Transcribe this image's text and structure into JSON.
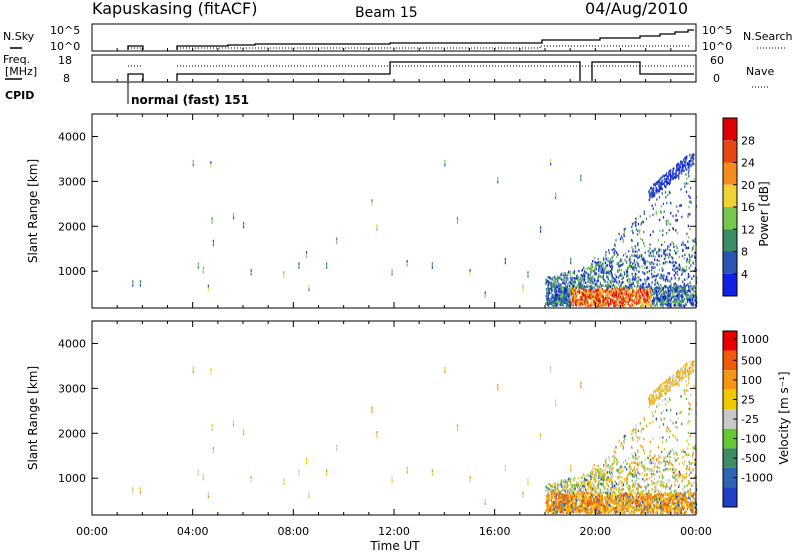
{
  "header": {
    "station": "Kapuskasing (fitACF)",
    "beam": "Beam 15",
    "date": "04/Aug/2010"
  },
  "strips": {
    "nsky_label": "N.Sky",
    "nsearch_label": "N.Search",
    "freq_label_line1": "Freq.",
    "freq_label_line2": "[MHz]",
    "nave_label": "Nave",
    "cpid_label": "CPID",
    "cpid_text": "normal (fast) 151",
    "nsky_ticks": [
      "10^5",
      "10^0"
    ],
    "nsearch_ticks": [
      "10^5",
      "10^0"
    ],
    "freq_ticks": [
      "18",
      "8"
    ],
    "nave_ticks": [
      "60",
      "0"
    ]
  },
  "chart_data": [
    {
      "type": "heatmap",
      "name": "power",
      "ylabel": "Slant Range [km]",
      "yticks": [
        1000,
        2000,
        3000,
        4000
      ],
      "ylim": [
        180,
        4500
      ],
      "xticks": [
        "00:00",
        "04:00",
        "08:00",
        "12:00",
        "16:00",
        "20:00",
        "00:00"
      ],
      "xlim": [
        0,
        24
      ],
      "colorbar": {
        "label": "Power [dB]",
        "ticks": [
          "4",
          "8",
          "12",
          "16",
          "20",
          "24",
          "28"
        ],
        "colors": [
          "#1020e6",
          "#2d55b4",
          "#3c8c64",
          "#78c850",
          "#f0d232",
          "#f58c1e",
          "#e64614",
          "#dc0000"
        ]
      }
    },
    {
      "type": "heatmap",
      "name": "velocity",
      "ylabel": "Slant Range [km]",
      "yticks": [
        1000,
        2000,
        3000,
        4000
      ],
      "ylim": [
        180,
        4500
      ],
      "xticks": [
        "00:00",
        "04:00",
        "08:00",
        "12:00",
        "16:00",
        "20:00",
        "00:00"
      ],
      "xlim": [
        0,
        24
      ],
      "xlabel": "Time UT",
      "colorbar": {
        "label": "Velocity [m s⁻¹]",
        "ticks": [
          "1000",
          "500",
          "100",
          "25",
          "-25",
          "-100",
          "-500",
          "-1000"
        ],
        "colors": [
          "#2040c8",
          "#2d64b4",
          "#3c8c64",
          "#64c832",
          "#c8c8c8",
          "#f0c800",
          "#f59614",
          "#f05a0a",
          "#e60000"
        ]
      }
    }
  ]
}
